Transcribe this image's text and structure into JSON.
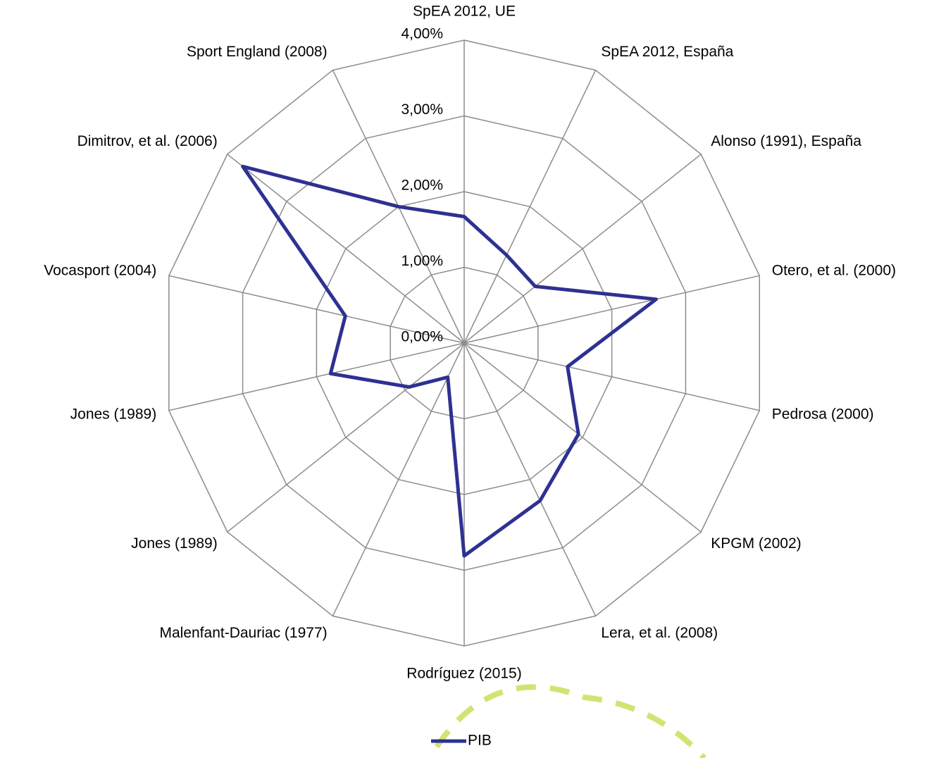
{
  "chart_data": {
    "type": "radar",
    "categories": [
      "SpEA 2012, UE",
      "SpEA 2012, España",
      "Alonso (1991), España",
      "Otero, et al. (2000)",
      "Pedrosa (2000)",
      "KPGM (2002)",
      "Lera, et al. (2008)",
      "Rodríguez (2015)",
      "Malenfant-Dauriac (1977)",
      "Jones (1989)",
      "Jones (1989)",
      "Vocasport (2004)",
      "Dimitrov, et al. (2006)",
      "Sport England (2008)"
    ],
    "series": [
      {
        "name": "PIB",
        "color": "#2e3192",
        "values": [
          1.67,
          1.29,
          1.2,
          2.6,
          1.4,
          1.93,
          2.31,
          2.81,
          0.5,
          0.93,
          1.81,
          1.61,
          3.74,
          2.0
        ]
      }
    ],
    "ylim": [
      0,
      4
    ],
    "yticks": [
      {
        "value": 0,
        "label": "0,00%"
      },
      {
        "value": 1,
        "label": "1,00%"
      },
      {
        "value": 2,
        "label": "2,00%"
      },
      {
        "value": 3,
        "label": "3,00%"
      },
      {
        "value": 4,
        "label": "4,00%"
      }
    ],
    "grid": true,
    "legend": "bottom"
  }
}
